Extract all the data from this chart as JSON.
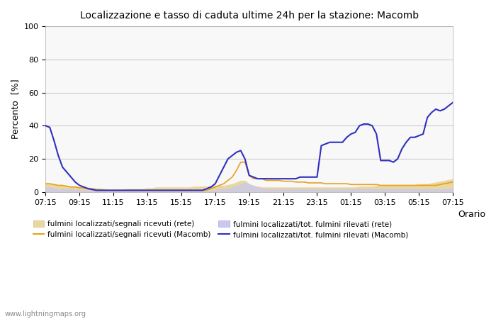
{
  "title": "Localizzazione e tasso di caduta ultime 24h per la stazione: Macomb",
  "xlabel": "Orario",
  "ylabel": "Percento  [%]",
  "watermark": "www.lightningmaps.org",
  "ylim": [
    0,
    100
  ],
  "yticks": [
    0,
    20,
    40,
    60,
    80,
    100
  ],
  "xtick_labels": [
    "07:15",
    "09:15",
    "11:15",
    "13:15",
    "15:15",
    "17:15",
    "19:15",
    "21:15",
    "23:15",
    "01:15",
    "03:15",
    "05:15",
    "07:15"
  ],
  "background_color": "#ffffff",
  "plot_bg_color": "#f8f8f8",
  "grid_color": "#cccccc",
  "legend_entries": [
    "fulmini localizzati/segnali ricevuti (rete)",
    "fulmini localizzati/segnali ricevuti (Macomb)",
    "fulmini localizzati/tot. fulmini rilevati (rete)",
    "fulmini localizzati/tot. fulmini rilevati (Macomb)"
  ],
  "color_rete_fill": "#e8d8a0",
  "color_macomb_segnali": "#e8a020",
  "color_rete_tot_fill": "#c8c8f0",
  "color_macomb_tot": "#3030c0",
  "rete_segnali": [
    5,
    5,
    4.5,
    4,
    4,
    4,
    3.5,
    3.5,
    3,
    3,
    3,
    2.5,
    2,
    2,
    2,
    1.5,
    1.5,
    1.5,
    1.5,
    2,
    2,
    2,
    2,
    2,
    2.5,
    2.5,
    3,
    3,
    3,
    3,
    3,
    3,
    3,
    3,
    3,
    3.5,
    3.5,
    3.5,
    3.5,
    4,
    4,
    4,
    4,
    4.5,
    5,
    6,
    7,
    7,
    5,
    4,
    3.5,
    3,
    3,
    3,
    3,
    3,
    3,
    3,
    3,
    3,
    3,
    3,
    3,
    3,
    3,
    3,
    3,
    3,
    3,
    3,
    3,
    3,
    3,
    3,
    3.5,
    3.5,
    3.5,
    3.5,
    4,
    4,
    4,
    4,
    4,
    4,
    4,
    4,
    4,
    4.5,
    5,
    5,
    5,
    5.5,
    6,
    6.5,
    7,
    7.5,
    8
  ],
  "macomb_segnali": [
    5,
    5,
    4.5,
    4,
    4,
    3.5,
    3,
    3,
    2.5,
    2.5,
    2,
    2,
    1.5,
    1.5,
    1,
    1,
    1,
    1,
    1,
    1,
    1,
    1,
    1,
    1,
    1,
    1,
    1,
    1,
    1,
    1,
    1,
    1,
    1,
    1,
    1,
    1,
    1,
    1,
    1,
    2,
    3,
    4,
    5,
    7,
    9,
    13,
    18,
    18,
    10,
    8,
    8,
    8,
    7,
    7,
    7,
    7,
    6.5,
    6.5,
    6.5,
    6,
    6,
    6,
    5.5,
    5.5,
    5.5,
    5.5,
    5,
    5,
    5,
    5,
    5,
    5,
    4.5,
    4.5,
    4.5,
    4.5,
    4.5,
    4.5,
    4.5,
    4,
    4,
    4,
    4,
    4,
    4,
    4,
    4,
    4,
    4,
    4,
    4,
    4,
    4,
    4.5,
    5,
    5.5,
    6,
    7,
    8
  ],
  "rete_tot": [
    3,
    3,
    2.5,
    2,
    2,
    2,
    2,
    1.5,
    1.5,
    1.5,
    1,
    1,
    1,
    1,
    0.5,
    0.5,
    0.5,
    0.5,
    0.5,
    0.5,
    0.5,
    0.5,
    0.5,
    0.5,
    0.5,
    0.5,
    0.5,
    0.5,
    0.5,
    0.5,
    0.5,
    0.5,
    0.5,
    0.5,
    0.5,
    0.5,
    0.5,
    0.5,
    1,
    1,
    1.5,
    2,
    2,
    2.5,
    3,
    4,
    5,
    6,
    5,
    4,
    3,
    2.5,
    2,
    2,
    2,
    2,
    2,
    2,
    2,
    2,
    2,
    2,
    2,
    2,
    2,
    2,
    2,
    2,
    2,
    2,
    2,
    2,
    2,
    2,
    2,
    2,
    2,
    2,
    2,
    2,
    2,
    2,
    2,
    2,
    2,
    2,
    2,
    2,
    2,
    2,
    2,
    2,
    2,
    2,
    2,
    2,
    2.5,
    3
  ],
  "macomb_tot": [
    40,
    39,
    31,
    22,
    15,
    12,
    9,
    6,
    4,
    3,
    2,
    1.5,
    1,
    1,
    1,
    1,
    1,
    1,
    1,
    1,
    1,
    1,
    1,
    1,
    1,
    1,
    1,
    1,
    1,
    1,
    1,
    1,
    1,
    1,
    1,
    1,
    1,
    1,
    2,
    3,
    5,
    10,
    15,
    20,
    22,
    24,
    25,
    20,
    10,
    9,
    8,
    8,
    8,
    8,
    8,
    8,
    8,
    8,
    8,
    8,
    9,
    9,
    9,
    9,
    9,
    28,
    29,
    30,
    30,
    30,
    30,
    33,
    35,
    36,
    40,
    41,
    41,
    40,
    35,
    19,
    19,
    19,
    18,
    20,
    26,
    30,
    33,
    33,
    34,
    35,
    45,
    48,
    50,
    49,
    50,
    52,
    54,
    55
  ]
}
